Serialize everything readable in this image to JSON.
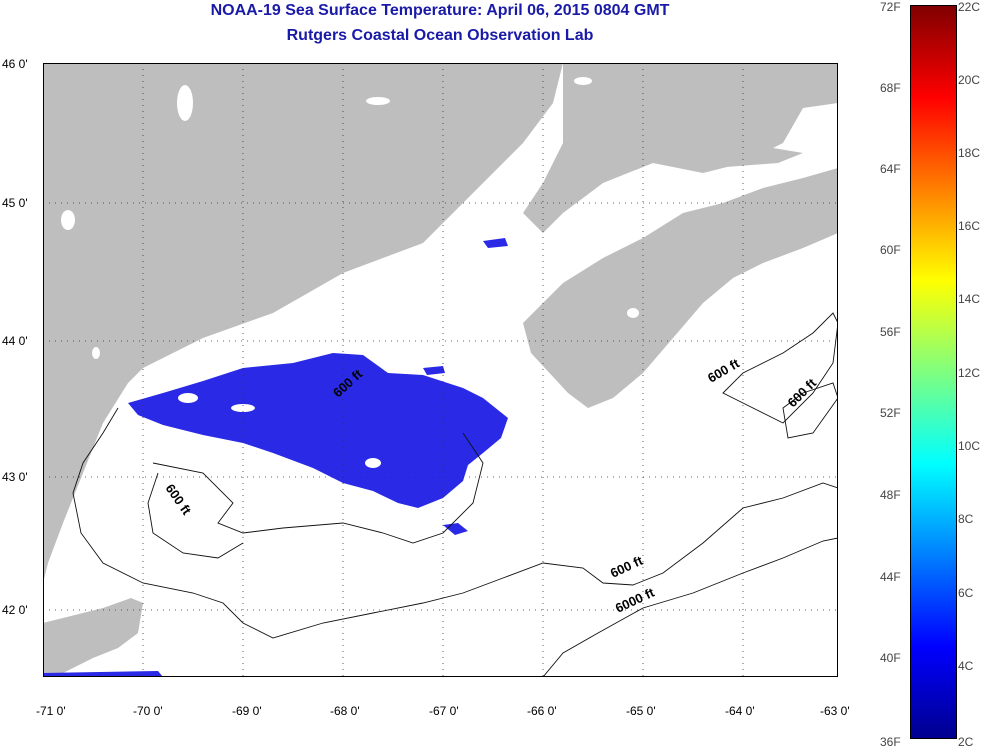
{
  "title": "NOAA-19 Sea Surface Temperature:  April 06, 2015 0804 GMT",
  "subtitle": "Rutgers Coastal Ocean Observation Lab",
  "lat_labels": [
    "46 0'",
    "45 0'",
    "44 0'",
    "43 0'",
    "42 0'"
  ],
  "lon_labels": [
    "-71 0'",
    "-70 0'",
    "-69 0'",
    "-68 0'",
    "-67 0'",
    "-66 0'",
    "-65 0'",
    "-64 0'",
    "-63 0'"
  ],
  "contour_labels": [
    "600 ft",
    "600 ft",
    "600 ft",
    "600 ft",
    "600 ft",
    "6000 ft"
  ],
  "colorbar": {
    "fahrenheit": [
      "72F",
      "68F",
      "64F",
      "60F",
      "56F",
      "52F",
      "48F",
      "44F",
      "40F",
      "36F"
    ],
    "celsius": [
      "22C",
      "20C",
      "18C",
      "16C",
      "14C",
      "12C",
      "10C",
      "8C",
      "6C",
      "4C",
      "2C"
    ]
  },
  "colors": {
    "land": "#bebebe",
    "ocean": "#ffffff",
    "sst_patch": "#2a2ae6",
    "title": "#1a1aa8"
  }
}
